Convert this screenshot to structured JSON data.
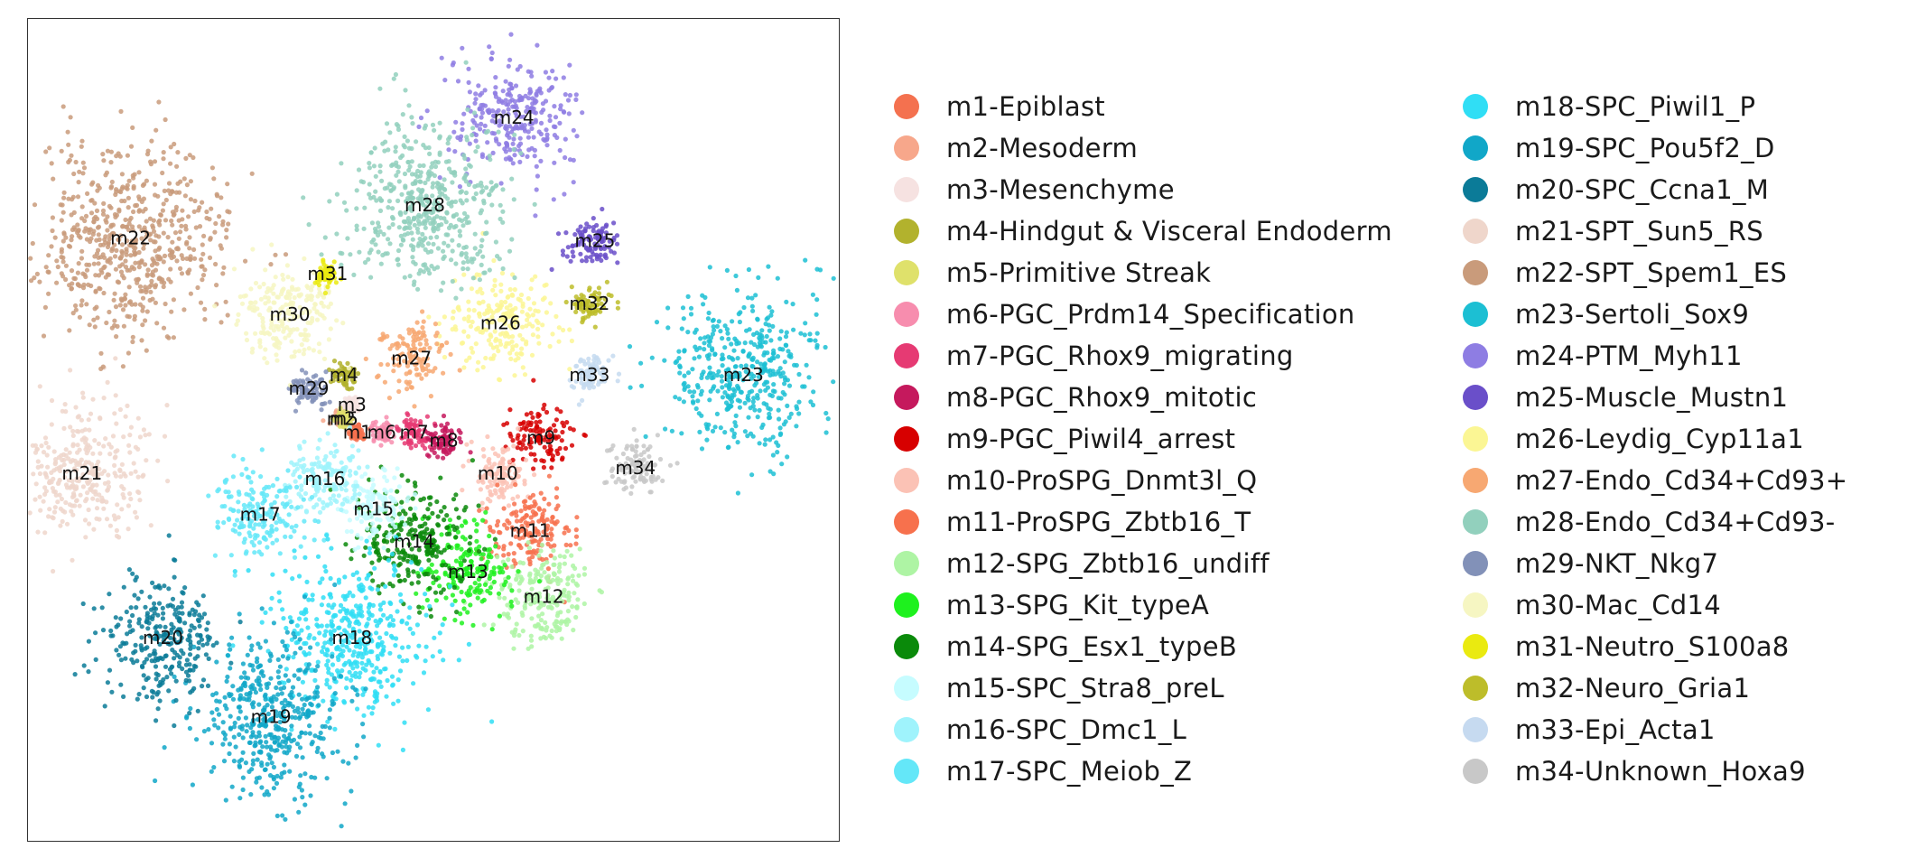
{
  "chart_data": {
    "type": "scatter",
    "title": "",
    "xlabel": "",
    "ylabel": "",
    "xlim": [
      -14,
      16
    ],
    "ylim": [
      -14,
      16
    ],
    "grid": false,
    "legend_placement": "right",
    "legend_columns": 2,
    "clusters": [
      {
        "id": "m1",
        "name": "m1-Epiblast",
        "color": "#f4714f",
        "x": -1.8,
        "y": 0.9,
        "spread": 0.3
      },
      {
        "id": "m2",
        "name": "m2-Mesoderm",
        "color": "#f7a78b",
        "x": -2.4,
        "y": 1.4,
        "spread": 0.3
      },
      {
        "id": "m3",
        "name": "m3-Mesenchyme",
        "color": "#f6e2e1",
        "x": -2.0,
        "y": 1.9,
        "spread": 0.3
      },
      {
        "id": "m4",
        "name": "m4-Hindgut & Visceral Endoderm",
        "color": "#b2b22d",
        "x": -2.3,
        "y": 3.0,
        "spread": 0.4
      },
      {
        "id": "m5",
        "name": "m5-Primitive Streak",
        "color": "#dfe16b",
        "x": -2.3,
        "y": 1.4,
        "spread": 0.3
      },
      {
        "id": "m6",
        "name": "m6-PGC_Prdm14_Specification",
        "color": "#f78dae",
        "x": -0.9,
        "y": 0.9,
        "spread": 0.35
      },
      {
        "id": "m7",
        "name": "m7-PGC_Rhox9_migrating",
        "color": "#e63a73",
        "x": 0.3,
        "y": 0.9,
        "spread": 0.5
      },
      {
        "id": "m8",
        "name": "m8-PGC_Rhox9_mitotic",
        "color": "#c5195d",
        "x": 1.4,
        "y": 0.6,
        "spread": 0.6
      },
      {
        "id": "m9",
        "name": "m9-PGC_Piwil4_arrest",
        "color": "#d70000",
        "x": 5.0,
        "y": 0.7,
        "spread": 1.0
      },
      {
        "id": "m10",
        "name": "m10-ProSPG_Dnmt3l_Q",
        "color": "#fbc2b5",
        "x": 3.4,
        "y": -0.6,
        "spread": 1.0
      },
      {
        "id": "m11",
        "name": "m11-ProSPG_Zbtb16_T",
        "color": "#f7714d",
        "x": 4.6,
        "y": -2.7,
        "spread": 1.4
      },
      {
        "id": "m12",
        "name": "m12-SPG_Zbtb16_undiff",
        "color": "#aef4a4",
        "x": 5.1,
        "y": -5.1,
        "spread": 1.7
      },
      {
        "id": "m13",
        "name": "m13-SPG_Kit_typeA",
        "color": "#1ef11e",
        "x": 2.3,
        "y": -4.2,
        "spread": 1.5
      },
      {
        "id": "m14",
        "name": "m14-SPG_Esx1_typeB",
        "color": "#0a8a0a",
        "x": 0.3,
        "y": -3.1,
        "spread": 1.9
      },
      {
        "id": "m15",
        "name": "m15-SPC_Stra8_preL",
        "color": "#c6fcff",
        "x": -1.2,
        "y": -1.9,
        "spread": 1.1
      },
      {
        "id": "m16",
        "name": "m16-SPC_Dmc1_L",
        "color": "#9ff3fc",
        "x": -3.0,
        "y": -0.8,
        "spread": 1.3
      },
      {
        "id": "m17",
        "name": "m17-SPC_Meiob_Z",
        "color": "#64e7f8",
        "x": -5.4,
        "y": -2.1,
        "spread": 1.5
      },
      {
        "id": "m18",
        "name": "m18-SPC_Piwil1_P",
        "color": "#30def5",
        "x": -2.0,
        "y": -6.6,
        "spread": 2.6
      },
      {
        "id": "m19",
        "name": "m19-SPC_Pou5f2_D",
        "color": "#11a7c8",
        "x": -5.0,
        "y": -9.5,
        "spread": 2.6
      },
      {
        "id": "m20",
        "name": "m20-SPC_Ccna1_M",
        "color": "#0b7b98",
        "x": -9.0,
        "y": -6.6,
        "spread": 2.0
      },
      {
        "id": "m21",
        "name": "m21-SPT_Sun5_RS",
        "color": "#efd6cb",
        "x": -12.0,
        "y": -0.6,
        "spread": 2.2
      },
      {
        "id": "m22",
        "name": "m22-SPT_Spem1_ES",
        "color": "#c99b7b",
        "x": -10.2,
        "y": 8.0,
        "spread": 3.2
      },
      {
        "id": "m23",
        "name": "m23-Sertoli_Sox9",
        "color": "#1cbfd3",
        "x": 12.5,
        "y": 3.0,
        "spread": 2.6
      },
      {
        "id": "m24",
        "name": "m24-PTM_Myh11",
        "color": "#8e7de3",
        "x": 4.0,
        "y": 12.4,
        "spread": 2.0
      },
      {
        "id": "m25",
        "name": "m25-Muscle_Mustn1",
        "color": "#6a4fc9",
        "x": 7.0,
        "y": 7.9,
        "spread": 0.9
      },
      {
        "id": "m26",
        "name": "m26-Leydig_Cyp11a1",
        "color": "#fbf694",
        "x": 3.5,
        "y": 4.9,
        "spread": 1.7
      },
      {
        "id": "m27",
        "name": "m27-Endo_Cd34+Cd93+",
        "color": "#f7a872",
        "x": 0.2,
        "y": 3.6,
        "spread": 1.1
      },
      {
        "id": "m28",
        "name": "m28-Endo_Cd34+Cd93-",
        "color": "#92d0bd",
        "x": 0.7,
        "y": 9.2,
        "spread": 2.8
      },
      {
        "id": "m29",
        "name": "m29-NKT_Nkg7",
        "color": "#8291b8",
        "x": -3.6,
        "y": 2.5,
        "spread": 0.6
      },
      {
        "id": "m30",
        "name": "m30-Mac_Cd14",
        "color": "#f6f6c2",
        "x": -4.3,
        "y": 5.2,
        "spread": 1.7
      },
      {
        "id": "m31",
        "name": "m31-Neutro_S100a8",
        "color": "#eaea10",
        "x": -2.9,
        "y": 6.7,
        "spread": 0.35
      },
      {
        "id": "m32",
        "name": "m32-Neuro_Gria1",
        "color": "#bdbd2a",
        "x": 6.8,
        "y": 5.6,
        "spread": 0.6
      },
      {
        "id": "m33",
        "name": "m33-Epi_Acta1",
        "color": "#c6daf0",
        "x": 6.8,
        "y": 3.0,
        "spread": 0.6
      },
      {
        "id": "m34",
        "name": "m34-Unknown_Hoxa9",
        "color": "#c8c8c8",
        "x": 8.5,
        "y": -0.4,
        "spread": 0.9
      }
    ]
  }
}
